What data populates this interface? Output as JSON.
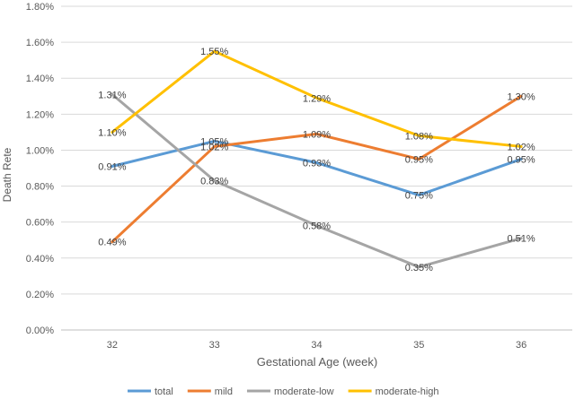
{
  "chart_data": {
    "type": "line",
    "title": "",
    "xlabel": "Gestational Age (week)",
    "ylabel": "Death Rete",
    "categories": [
      "32",
      "33",
      "34",
      "35",
      "36"
    ],
    "ylim": [
      0,
      1.8
    ],
    "yticks": [
      "0.00%",
      "0.20%",
      "0.40%",
      "0.60%",
      "0.80%",
      "1.00%",
      "1.20%",
      "1.40%",
      "1.60%",
      "1.80%"
    ],
    "grid": true,
    "legend_position": "bottom",
    "series": [
      {
        "name": "total",
        "color": "#5b9bd5",
        "values": [
          0.91,
          1.05,
          0.93,
          0.75,
          0.95
        ],
        "labels": [
          "0.91%",
          "1.05%",
          "0.93%",
          "0.75%",
          "0.95%"
        ]
      },
      {
        "name": "mild",
        "color": "#ed7d31",
        "values": [
          0.49,
          1.02,
          1.09,
          0.95,
          1.3
        ],
        "labels": [
          "0.49%",
          "1.02%",
          "1.09%",
          "0.95%",
          "1.30%"
        ]
      },
      {
        "name": "moderate-low",
        "color": "#a5a5a5",
        "values": [
          1.31,
          0.83,
          0.58,
          0.35,
          0.51
        ],
        "labels": [
          "1.31%",
          "0.83%",
          "0.58%",
          "0.35%",
          "0.51%"
        ]
      },
      {
        "name": "moderate-high",
        "color": "#ffc000",
        "values": [
          1.1,
          1.55,
          1.29,
          1.08,
          1.02
        ],
        "labels": [
          "1.10%",
          "1.55%",
          "1.29%",
          "1.08%",
          "1.02%"
        ]
      }
    ]
  }
}
